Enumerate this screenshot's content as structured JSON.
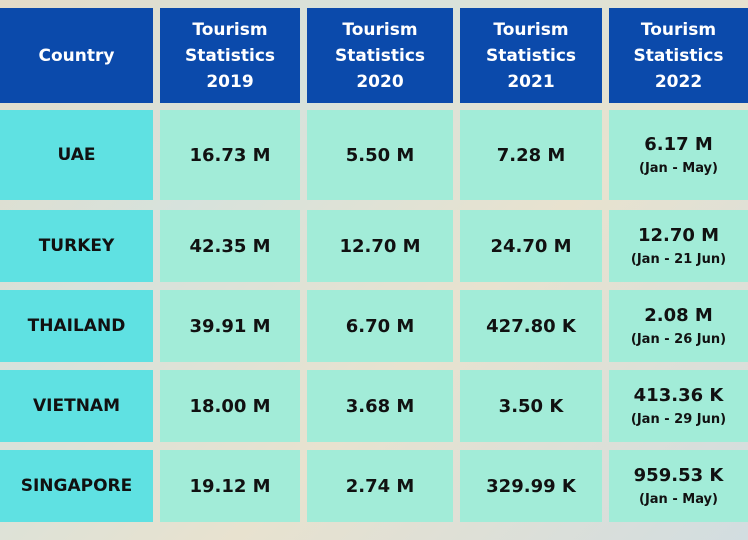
{
  "table": {
    "header": [
      "Country",
      "Tourism Statistics 2019",
      "Tourism Statistics 2020",
      "Tourism Statistics 2021",
      "Tourism Statistics 2022"
    ],
    "rows": [
      [
        "UAE",
        "16.73 M",
        "5.50 M",
        "7.28 M",
        {
          "value": "6.17 M",
          "period": "(Jan - May)"
        }
      ],
      [
        "TURKEY",
        "42.35 M",
        "12.70 M",
        "24.70 M",
        {
          "value": "12.70 M",
          "period": "(Jan - 21 Jun)"
        }
      ],
      [
        "THAILAND",
        "39.91 M",
        "6.70 M",
        "427.80 K",
        {
          "value": "2.08 M",
          "period": "(Jan - 26 Jun)"
        }
      ],
      [
        "VIETNAM",
        "18.00 M",
        "3.68 M",
        "3.50 K",
        {
          "value": "413.36 K",
          "period": "(Jan - 29 Jun)"
        }
      ],
      [
        "SINGAPORE",
        "19.12 M",
        "2.74 M",
        "329.99 K",
        {
          "value": "959.53 K",
          "period": "(Jan - May)"
        }
      ]
    ]
  }
}
